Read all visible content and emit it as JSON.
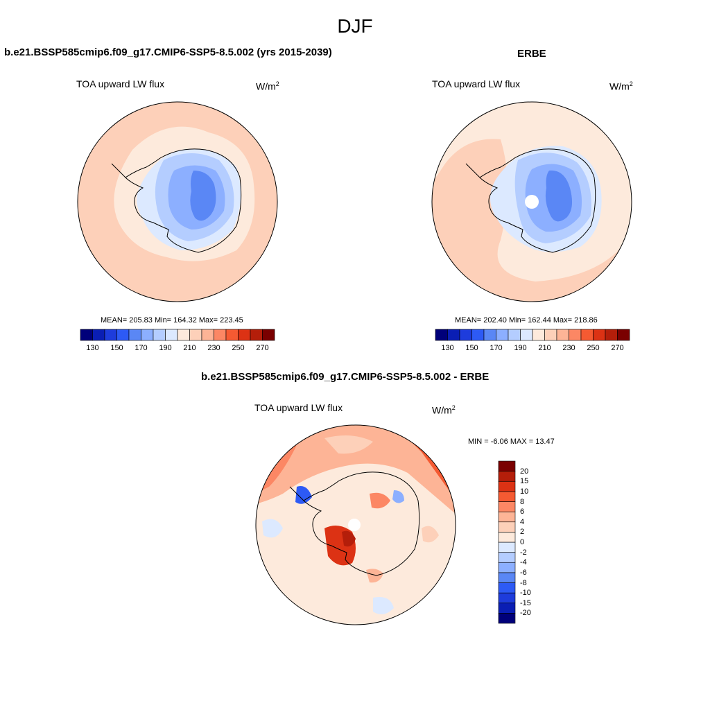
{
  "figure": {
    "season": "DJF"
  },
  "panels": [
    {
      "id": "model",
      "title": "b.e21.BSSP585cmip6.f09_g17.CMIP6-SSP5-8.5.002 (yrs 2015-2039)",
      "variable": "TOA upward LW flux",
      "units_base": "W/m",
      "units_exp": "2",
      "stats": "MEAN= 205.83  Min= 164.32  Max= 223.45"
    },
    {
      "id": "obs",
      "title": "ERBE",
      "variable": "TOA upward LW flux",
      "units_base": "W/m",
      "units_exp": "2",
      "stats": "MEAN= 202.40  Min= 162.44  Max= 218.86"
    },
    {
      "id": "diff",
      "title": "b.e21.BSSP585cmip6.f09_g17.CMIP6-SSP5-8.5.002 - ERBE",
      "variable": "TOA upward LW flux",
      "units_base": "W/m",
      "units_exp": "2",
      "stats": "MIN =  -6.06 MAX =  13.47"
    }
  ],
  "colorbar_main": {
    "colors": [
      "#00007a",
      "#0a1eb4",
      "#1e3cdc",
      "#2d5af5",
      "#5a87f5",
      "#8cafff",
      "#b4cdff",
      "#dce9ff",
      "#fdeadc",
      "#fdd0b9",
      "#fdb496",
      "#fc8764",
      "#f55a32",
      "#dc3214",
      "#b41e0a",
      "#7a0000"
    ],
    "tick_labels": [
      "130",
      "150",
      "170",
      "190",
      "210",
      "230",
      "250",
      "270"
    ]
  },
  "colorbar_diff": {
    "colors": [
      "#00007a",
      "#0a1eb4",
      "#1e3cdc",
      "#2d5af5",
      "#5a87f5",
      "#8cafff",
      "#b4cdff",
      "#dce9ff",
      "#fdeadc",
      "#fdd0b9",
      "#fdb496",
      "#fc8764",
      "#f55a32",
      "#dc3214",
      "#b41e0a",
      "#7a0000"
    ],
    "tick_labels": [
      "20",
      "15",
      "10",
      "8",
      "6",
      "4",
      "2",
      "0",
      "-2",
      "-4",
      "-6",
      "-8",
      "-10",
      "-15",
      "-20"
    ]
  }
}
